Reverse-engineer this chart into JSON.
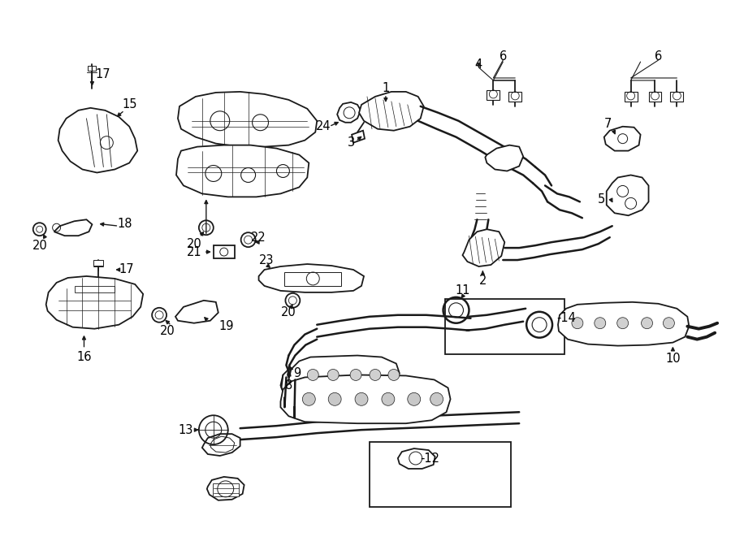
{
  "bg_color": "#ffffff",
  "line_color": "#1a1a1a",
  "text_color": "#000000",
  "figsize": [
    9.0,
    6.61
  ],
  "dpi": 100,
  "lw": 1.3,
  "fs": 10.5
}
